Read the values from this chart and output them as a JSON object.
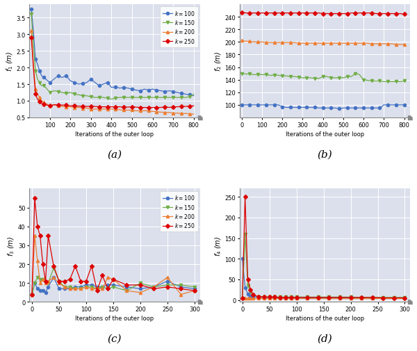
{
  "fig_width": 6.0,
  "fig_height": 5.06,
  "dpi": 100,
  "bg_color": "#dce0ec",
  "fig_bg": "#ffffff",
  "line_colors": {
    "k100": "#4472c4",
    "k150": "#70ad47",
    "k200": "#ed7d31",
    "k250": "#dd0000"
  },
  "marker_styles": {
    "k100": "o",
    "k150": "v",
    "k200": "^",
    "k250": "D"
  },
  "marker_sizes": {
    "k100": 3,
    "k150": 3,
    "k200": 3,
    "k250": 3
  },
  "subplot_labels": [
    "(a)",
    "(b)",
    "(c)",
    "(d)"
  ],
  "ax_ylabels": [
    "$f_1$ (m)",
    "$f_2$ (m)",
    "$f_3$ (m)",
    "$f_4$ (m)"
  ],
  "xlabel": "Iterations of the outer loop",
  "has_legend": [
    true,
    false,
    true,
    false
  ],
  "plot_a": {
    "x": [
      10,
      20,
      30,
      40,
      50,
      60,
      70,
      80,
      100,
      120,
      140,
      160,
      180,
      200,
      220,
      240,
      260,
      280,
      300,
      320,
      340,
      360,
      380,
      400,
      420,
      440,
      460,
      480,
      500,
      520,
      540,
      560,
      580,
      600,
      620,
      640,
      660,
      680,
      700,
      720,
      740,
      760,
      780,
      800
    ],
    "k100": [
      3.75,
      3.1,
      2.25,
      2.1,
      1.9,
      1.75,
      1.7,
      1.65,
      1.55,
      1.65,
      1.75,
      1.7,
      1.75,
      1.6,
      1.55,
      1.5,
      1.52,
      1.55,
      1.65,
      1.55,
      1.45,
      1.5,
      1.55,
      1.4,
      1.42,
      1.38,
      1.4,
      1.38,
      1.35,
      1.32,
      1.3,
      1.35,
      1.32,
      1.35,
      1.32,
      1.3,
      1.28,
      1.3,
      1.28,
      1.25,
      1.22,
      1.2,
      1.18,
      1.15
    ],
    "k150": [
      3.6,
      2.7,
      1.9,
      1.65,
      1.55,
      1.45,
      1.45,
      1.4,
      1.25,
      1.3,
      1.28,
      1.25,
      1.22,
      1.25,
      1.2,
      1.18,
      1.15,
      1.15,
      1.12,
      1.1,
      1.1,
      1.1,
      1.08,
      1.05,
      1.08,
      1.1,
      1.1,
      1.1,
      1.1,
      1.1,
      1.1,
      1.1,
      1.1,
      1.1,
      1.1,
      1.1,
      1.1,
      1.1,
      1.1,
      1.1,
      1.1,
      1.1,
      1.12,
      1.2
    ],
    "k200": [
      3.1,
      2.1,
      1.35,
      1.2,
      1.1,
      1.0,
      0.95,
      0.92,
      0.85,
      0.88,
      0.85,
      0.83,
      0.82,
      0.82,
      0.8,
      0.8,
      0.78,
      0.78,
      0.75,
      0.75,
      0.75,
      0.75,
      0.75,
      0.75,
      0.75,
      0.73,
      0.72,
      0.72,
      0.72,
      0.7,
      0.7,
      0.7,
      0.7,
      0.68,
      0.67,
      0.66,
      0.65,
      0.65,
      0.63,
      0.63,
      0.62,
      0.62,
      0.61,
      0.6
    ],
    "k250": [
      2.9,
      2.0,
      1.2,
      1.05,
      0.97,
      0.92,
      0.9,
      0.88,
      0.85,
      0.88,
      0.88,
      0.87,
      0.87,
      0.85,
      0.85,
      0.84,
      0.84,
      0.83,
      0.83,
      0.83,
      0.82,
      0.82,
      0.82,
      0.82,
      0.82,
      0.82,
      0.81,
      0.81,
      0.82,
      0.81,
      0.8,
      0.8,
      0.8,
      0.8,
      0.8,
      0.8,
      0.82,
      0.8,
      0.82,
      0.82,
      0.83,
      0.83,
      0.84,
      0.85
    ],
    "ylim": [
      0.5,
      3.9
    ],
    "yticks": [
      0.5,
      1.0,
      1.5,
      2.0,
      2.5,
      3.0,
      3.5
    ],
    "xlim": [
      0,
      830
    ],
    "xticks": [
      100,
      200,
      300,
      400,
      500,
      600,
      700,
      800
    ]
  },
  "plot_b": {
    "x": [
      0,
      20,
      40,
      60,
      80,
      100,
      120,
      140,
      160,
      180,
      200,
      220,
      240,
      260,
      280,
      300,
      320,
      340,
      360,
      380,
      400,
      420,
      440,
      460,
      480,
      500,
      520,
      540,
      560,
      580,
      600,
      620,
      640,
      660,
      680,
      700,
      720,
      740,
      760,
      780,
      800
    ],
    "k100": [
      100,
      100,
      100,
      100,
      100,
      100,
      100,
      100,
      100,
      100,
      97,
      96,
      96,
      96,
      96,
      96,
      96,
      96,
      96,
      95,
      95,
      95,
      95,
      95,
      94,
      95,
      95,
      95,
      95,
      95,
      95,
      95,
      95,
      95,
      95,
      100,
      100,
      100,
      100,
      100,
      100
    ],
    "k150": [
      150,
      149,
      149,
      148,
      148,
      148,
      148,
      147,
      147,
      147,
      146,
      146,
      145,
      145,
      144,
      143,
      143,
      143,
      142,
      142,
      145,
      145,
      143,
      143,
      143,
      143,
      145,
      145,
      150,
      148,
      140,
      139,
      138,
      138,
      138,
      137,
      137,
      137,
      137,
      137,
      138
    ],
    "k200": [
      202,
      201,
      201,
      200,
      200,
      200,
      199,
      199,
      199,
      199,
      199,
      199,
      199,
      199,
      198,
      198,
      198,
      198,
      198,
      198,
      198,
      198,
      198,
      198,
      198,
      198,
      198,
      198,
      198,
      198,
      198,
      198,
      197,
      197,
      197,
      197,
      197,
      197,
      196,
      196,
      196
    ],
    "k250": [
      247,
      246,
      246,
      246,
      246,
      246,
      246,
      246,
      246,
      246,
      246,
      246,
      246,
      246,
      246,
      246,
      246,
      246,
      246,
      246,
      245,
      245,
      245,
      245,
      245,
      245,
      245,
      246,
      246,
      246,
      246,
      246,
      246,
      245,
      245,
      245,
      245,
      245,
      245,
      245,
      244
    ],
    "ylim": [
      80,
      260
    ],
    "yticks": [
      100,
      120,
      140,
      160,
      180,
      200,
      220,
      240
    ],
    "xlim": [
      -10,
      830
    ],
    "xticks": [
      0,
      100,
      200,
      300,
      400,
      500,
      600,
      700,
      800
    ]
  },
  "plot_c": {
    "x": [
      0,
      5,
      10,
      15,
      20,
      25,
      30,
      40,
      50,
      60,
      70,
      80,
      90,
      100,
      110,
      120,
      130,
      140,
      150,
      175,
      200,
      225,
      250,
      275,
      300
    ],
    "k100": [
      4,
      10,
      7,
      6,
      6,
      5,
      8,
      13,
      7,
      7,
      7,
      8,
      8,
      9,
      9,
      8,
      8,
      9,
      9,
      8,
      7,
      8,
      11,
      8,
      7
    ],
    "k150": [
      4,
      10,
      13,
      12,
      12,
      10,
      10,
      18,
      11,
      8,
      8,
      7,
      7,
      8,
      8,
      7,
      8,
      7,
      8,
      6,
      10,
      8,
      9,
      9,
      8
    ],
    "k200": [
      4,
      35,
      22,
      10,
      12,
      10,
      11,
      13,
      10,
      8,
      7,
      7,
      7,
      8,
      7,
      7,
      7,
      13,
      12,
      6,
      5,
      8,
      13,
      4,
      6
    ],
    "k250": [
      4,
      55,
      40,
      35,
      20,
      11,
      35,
      19,
      11,
      11,
      12,
      19,
      11,
      11,
      19,
      6,
      14,
      7,
      12,
      9,
      9,
      7,
      8,
      7,
      6
    ],
    "ylim": [
      0,
      60
    ],
    "yticks": [
      0,
      10,
      20,
      30,
      40,
      50
    ],
    "xlim": [
      -5,
      310
    ],
    "xticks": [
      0,
      50,
      100,
      150,
      200,
      250,
      300
    ]
  },
  "plot_d": {
    "x": [
      0,
      5,
      10,
      15,
      20,
      30,
      40,
      50,
      60,
      70,
      80,
      90,
      100,
      120,
      140,
      160,
      180,
      200,
      220,
      240,
      260,
      280,
      300
    ],
    "k100": [
      100,
      30,
      15,
      10,
      8,
      7,
      6,
      6,
      6,
      5,
      5,
      5,
      5,
      5,
      5,
      5,
      5,
      5,
      5,
      5,
      5,
      5,
      5
    ],
    "k150": [
      5,
      160,
      35,
      20,
      12,
      8,
      7,
      7,
      7,
      7,
      7,
      7,
      7,
      7,
      7,
      7,
      7,
      7,
      6,
      6,
      6,
      6,
      6
    ],
    "k200": [
      5,
      5,
      5,
      5,
      5,
      5,
      5,
      5,
      5,
      5,
      5,
      5,
      5,
      5,
      5,
      5,
      5,
      5,
      5,
      5,
      5,
      5,
      5
    ],
    "k250": [
      5,
      250,
      50,
      25,
      12,
      8,
      7,
      7,
      7,
      6,
      6,
      6,
      6,
      6,
      6,
      6,
      6,
      6,
      6,
      6,
      5,
      5,
      5
    ],
    "ylim": [
      -5,
      270
    ],
    "yticks": [
      0,
      50,
      100,
      150,
      200,
      250
    ],
    "xlim": [
      -5,
      310
    ],
    "xticks": [
      0,
      50,
      100,
      150,
      200,
      250,
      300
    ]
  }
}
